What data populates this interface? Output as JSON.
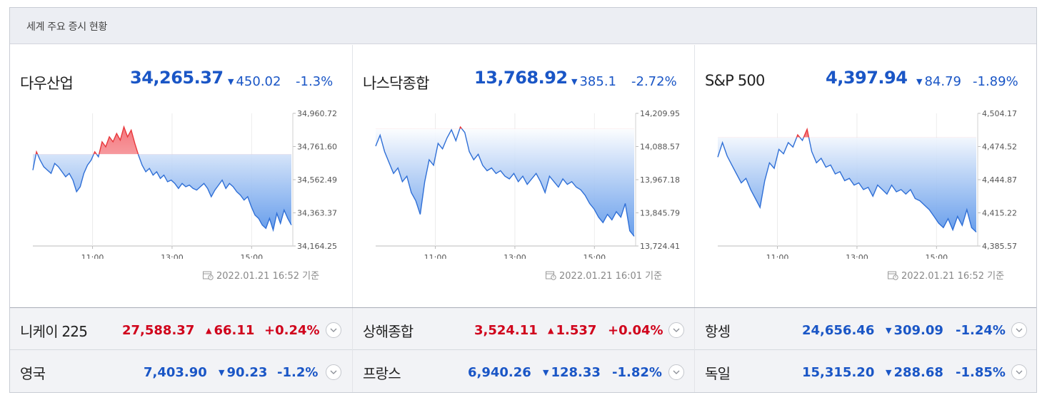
{
  "header": {
    "title": "세계 주요 증시 현황"
  },
  "colors": {
    "down": "#1a56c6",
    "up": "#d0021b",
    "line": "#2f6fd6",
    "up_line": "#e8383c"
  },
  "panels": [
    {
      "name": "다우산업",
      "price": "34,265.37",
      "change": "450.02",
      "direction": "down",
      "direction_icon": "triangle-down-icon",
      "pct": "-1.3%",
      "timestamp": "2022.01.21 16:52 기준",
      "chart_data": {
        "type": "line",
        "y_ticks": [
          "34,960.72",
          "34,761.60",
          "34,562.49",
          "34,363.37",
          "34,164.25"
        ],
        "ylim": [
          34164.25,
          34960.72
        ],
        "x_ticks": [
          "11:00",
          "13:00",
          "15:00"
        ],
        "x_tick_hours": [
          11,
          13,
          15
        ],
        "xlim": [
          9.5,
          16.0
        ],
        "reference_close": 34715.39,
        "values": [
          34620,
          34730,
          34680,
          34640,
          34620,
          34600,
          34660,
          34640,
          34610,
          34580,
          34600,
          34560,
          34490,
          34520,
          34600,
          34650,
          34680,
          34730,
          34700,
          34790,
          34760,
          34820,
          34790,
          34840,
          34800,
          34880,
          34820,
          34860,
          34780,
          34710,
          34650,
          34610,
          34630,
          34590,
          34610,
          34570,
          34590,
          34550,
          34560,
          34540,
          34510,
          34540,
          34520,
          34530,
          34510,
          34500,
          34520,
          34540,
          34510,
          34460,
          34500,
          34530,
          34560,
          34510,
          34540,
          34520,
          34490,
          34470,
          34440,
          34460,
          34400,
          34350,
          34330,
          34290,
          34270,
          34330,
          34260,
          34360,
          34300,
          34380,
          34330,
          34290
        ]
      }
    },
    {
      "name": "나스닥종합",
      "price": "13,768.92",
      "change": "385.1",
      "direction": "down",
      "direction_icon": "triangle-down-icon",
      "pct": "-2.72%",
      "timestamp": "2022.01.21 16:01 기준",
      "chart_data": {
        "type": "line",
        "y_ticks": [
          "14,209.95",
          "14,088.57",
          "13,967.18",
          "13,845.79",
          "13,724.41"
        ],
        "ylim": [
          13724.41,
          14209.95
        ],
        "x_ticks": [
          "11:00",
          "13:00",
          "15:00"
        ],
        "x_tick_hours": [
          11,
          13,
          15
        ],
        "xlim": [
          9.5,
          16.0
        ],
        "reference_close": 14154.02,
        "values": [
          14090,
          14130,
          14070,
          14030,
          13990,
          14010,
          13960,
          13980,
          13920,
          13890,
          13840,
          13960,
          14040,
          14020,
          14100,
          14080,
          14120,
          14150,
          14110,
          14160,
          14140,
          14070,
          14040,
          14060,
          14020,
          14000,
          14010,
          13990,
          14000,
          13980,
          13970,
          13990,
          13960,
          13980,
          13950,
          13970,
          13990,
          13960,
          13920,
          13980,
          13960,
          13940,
          13970,
          13950,
          13960,
          13940,
          13930,
          13910,
          13880,
          13860,
          13830,
          13810,
          13840,
          13820,
          13850,
          13830,
          13880,
          13780,
          13760
        ]
      }
    },
    {
      "name": "S&P 500",
      "price": "4,397.94",
      "change": "84.79",
      "direction": "down",
      "direction_icon": "triangle-down-icon",
      "pct": "-1.89%",
      "timestamp": "2022.01.21 16:52 기준",
      "chart_data": {
        "type": "line",
        "y_ticks": [
          "4,504.17",
          "4,474.52",
          "4,444.87",
          "4,415.22",
          "4,385.57"
        ],
        "ylim": [
          4385.57,
          4504.17
        ],
        "x_ticks": [
          "11:00",
          "13:00",
          "15:00"
        ],
        "x_tick_hours": [
          11,
          13,
          15
        ],
        "xlim": [
          9.5,
          16.0
        ],
        "reference_close": 4482.73,
        "values": [
          4465,
          4478,
          4466,
          4458,
          4450,
          4442,
          4446,
          4436,
          4428,
          4420,
          4444,
          4460,
          4455,
          4472,
          4468,
          4478,
          4474,
          4485,
          4480,
          4490,
          4470,
          4460,
          4464,
          4456,
          4458,
          4450,
          4452,
          4444,
          4446,
          4440,
          4442,
          4436,
          4438,
          4430,
          4440,
          4436,
          4432,
          4440,
          4434,
          4436,
          4432,
          4436,
          4428,
          4426,
          4422,
          4418,
          4412,
          4406,
          4402,
          4410,
          4400,
          4412,
          4404,
          4418,
          4402,
          4398
        ]
      }
    }
  ],
  "rows": [
    [
      {
        "name": "니케이 225",
        "price": "27,588.37",
        "change": "66.11",
        "direction": "up",
        "direction_icon": "triangle-up-icon",
        "pct": "+0.24%"
      },
      {
        "name": "상해종합",
        "price": "3,524.11",
        "change": "1.537",
        "direction": "up",
        "direction_icon": "triangle-up-icon",
        "pct": "+0.04%"
      },
      {
        "name": "항셍",
        "price": "24,656.46",
        "change": "309.09",
        "direction": "down",
        "direction_icon": "triangle-down-icon",
        "pct": "-1.24%"
      }
    ],
    [
      {
        "name": "영국",
        "price": "7,403.90",
        "change": "90.23",
        "direction": "down",
        "direction_icon": "triangle-down-icon",
        "pct": "-1.2%"
      },
      {
        "name": "프랑스",
        "price": "6,940.26",
        "change": "128.33",
        "direction": "down",
        "direction_icon": "triangle-down-icon",
        "pct": "-1.82%"
      },
      {
        "name": "독일",
        "price": "15,315.20",
        "change": "288.68",
        "direction": "down",
        "direction_icon": "triangle-down-icon",
        "pct": "-1.85%"
      }
    ]
  ]
}
